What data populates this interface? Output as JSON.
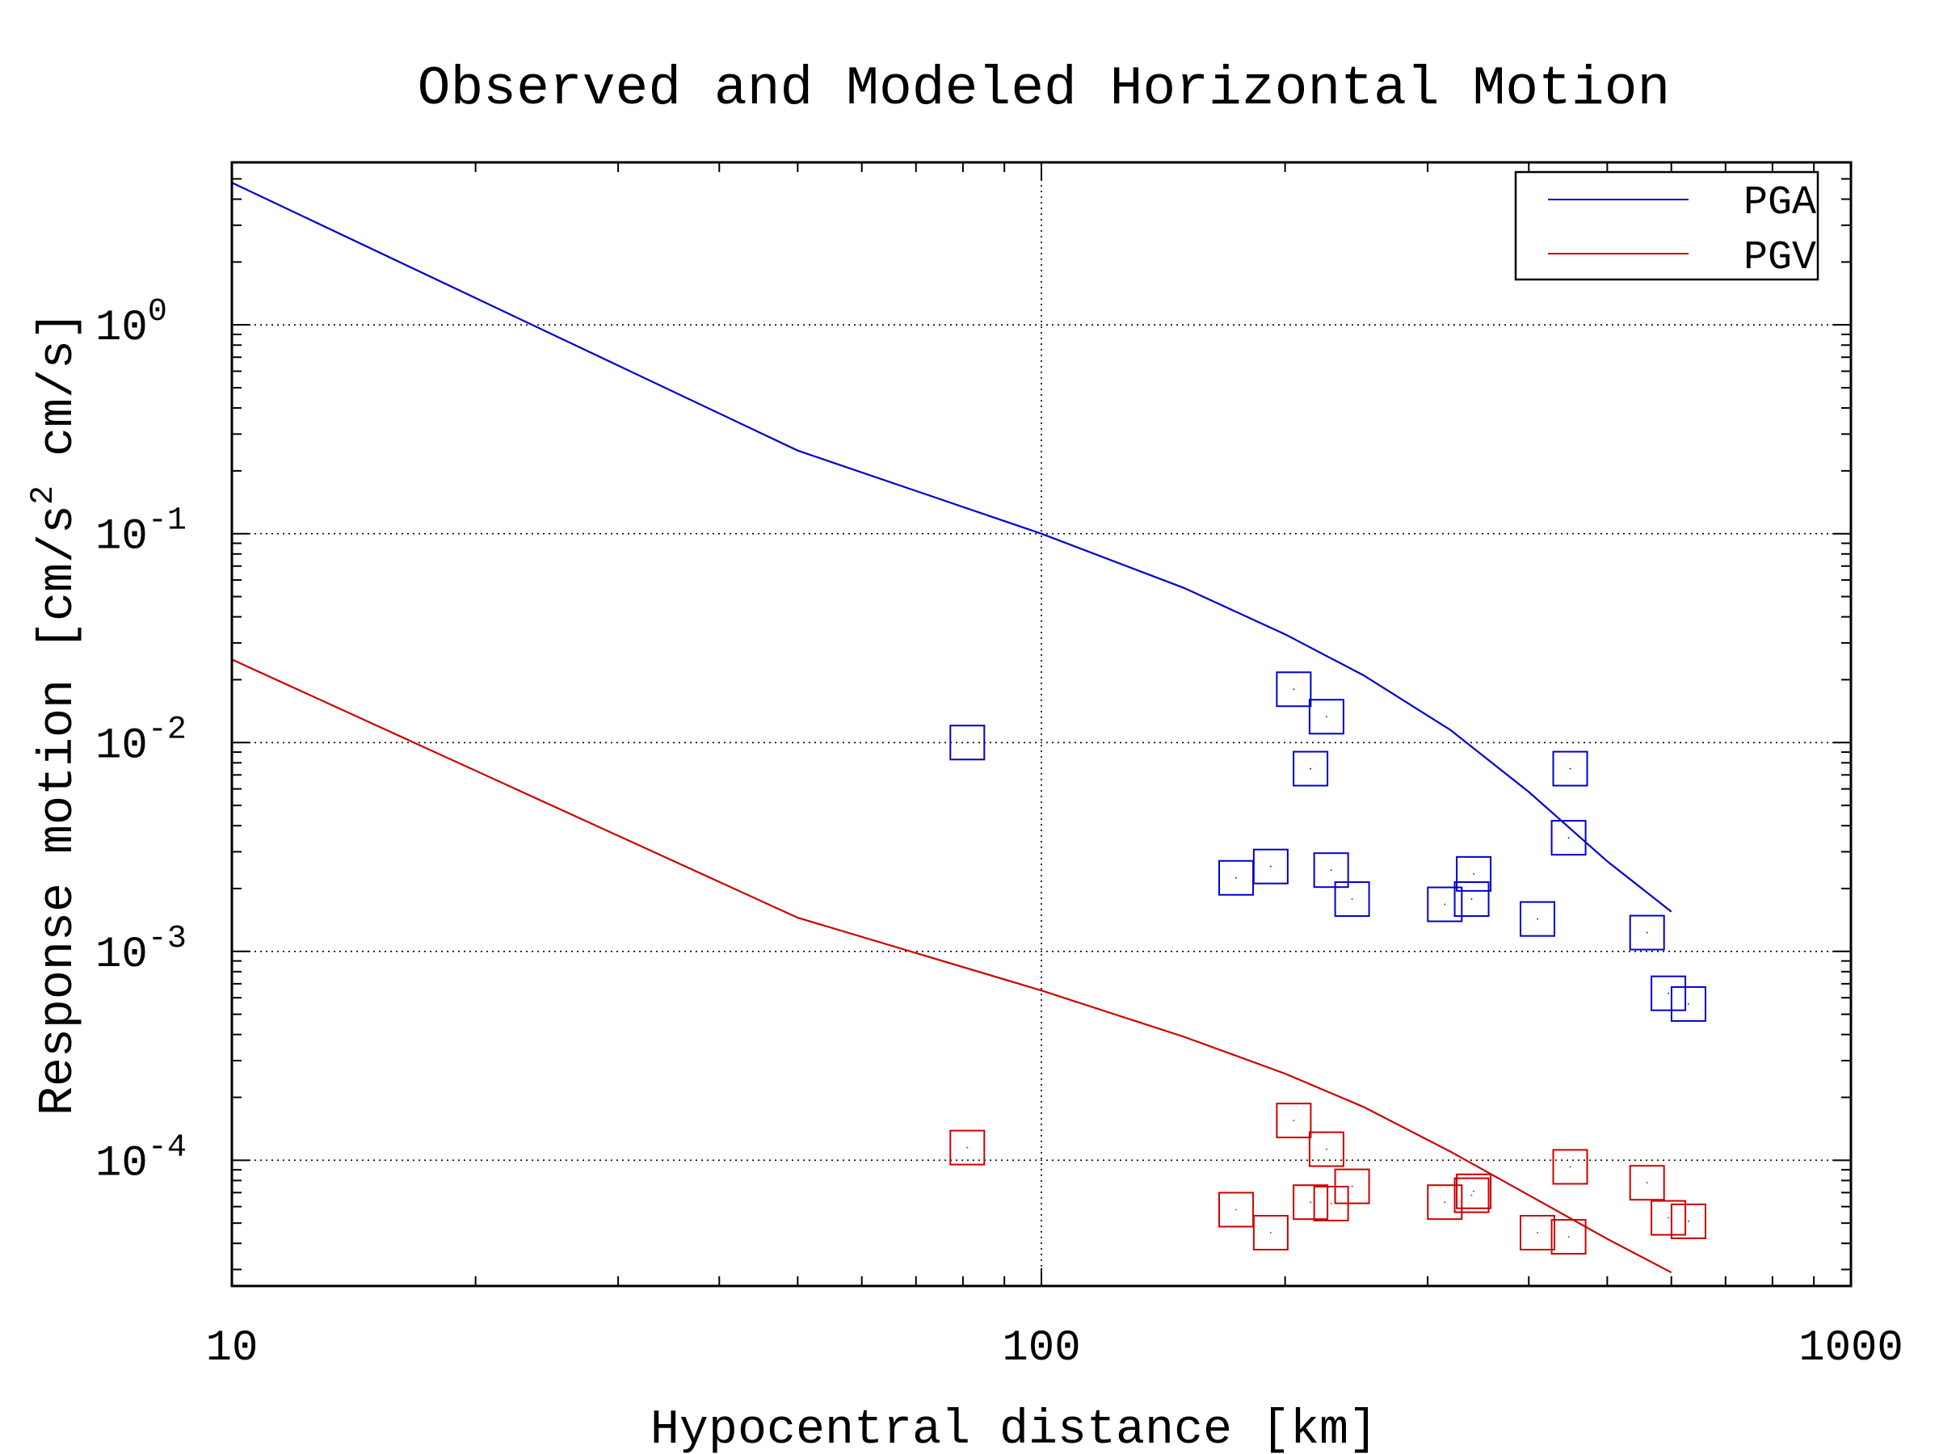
{
  "chart_data": {
    "type": "scatter",
    "title": "Observed and Modeled Horizontal Motion",
    "xlabel": "Hypocentral distance [km]",
    "ylabel": {
      "main": "Response motion  [cm/s",
      "sup": "2",
      "tail": "  cm/s]"
    },
    "x_scale": "log",
    "y_scale": "log",
    "xlim": [
      10,
      1000
    ],
    "ylim": [
      2.5e-05,
      6
    ],
    "x_ticks": [
      {
        "value": 10,
        "label": "10"
      },
      {
        "value": 100,
        "label": "100"
      },
      {
        "value": 1000,
        "label": "1000"
      }
    ],
    "y_ticks": [
      {
        "value": 1,
        "base": "10",
        "exp": "0"
      },
      {
        "value": 0.1,
        "base": "10",
        "exp": "-1"
      },
      {
        "value": 0.01,
        "base": "10",
        "exp": "-2"
      },
      {
        "value": 0.001,
        "base": "10",
        "exp": "-3"
      },
      {
        "value": 0.0001,
        "base": "10",
        "exp": "-4"
      }
    ],
    "grid": true,
    "legend_position": "top-right",
    "series": [
      {
        "name": "PGA",
        "kind": "line",
        "color": "#0000cc",
        "x": [
          10,
          50,
          100,
          150,
          200,
          250,
          320,
          400,
          500,
          600
        ],
        "y": [
          4.8,
          0.25,
          0.1,
          0.055,
          0.033,
          0.021,
          0.0115,
          0.0058,
          0.0027,
          0.00155
        ]
      },
      {
        "name": "PGV",
        "kind": "line",
        "color": "#cc0000",
        "x": [
          10,
          50,
          100,
          150,
          200,
          250,
          320,
          400,
          500,
          600
        ],
        "y": [
          0.025,
          0.00145,
          0.00065,
          0.00039,
          0.00026,
          0.00018,
          0.00011,
          6.8e-05,
          4.2e-05,
          2.9e-05
        ]
      },
      {
        "kind": "markers",
        "color": "#0000cc",
        "x": [
          81,
          205,
          225,
          215,
          174,
          192,
          228,
          242,
          315,
          340,
          342,
          410,
          450,
          448,
          560,
          595,
          630
        ],
        "y": [
          0.01,
          0.018,
          0.0133,
          0.0075,
          0.00225,
          0.00255,
          0.00245,
          0.00178,
          0.00168,
          0.00178,
          0.00235,
          0.00143,
          0.0075,
          0.0035,
          0.00123,
          0.00063,
          0.00056
        ]
      },
      {
        "kind": "markers",
        "color": "#cc0000",
        "x": [
          81,
          205,
          225,
          215,
          174,
          192,
          228,
          242,
          315,
          340,
          342,
          410,
          450,
          448,
          560,
          595,
          630
        ],
        "y": [
          0.000115,
          0.000155,
          0.000113,
          6.3e-05,
          5.8e-05,
          4.5e-05,
          6.2e-05,
          7.5e-05,
          6.3e-05,
          6.8e-05,
          7.1e-05,
          4.5e-05,
          9.3e-05,
          4.3e-05,
          7.8e-05,
          5.3e-05,
          5.1e-05
        ]
      }
    ]
  }
}
